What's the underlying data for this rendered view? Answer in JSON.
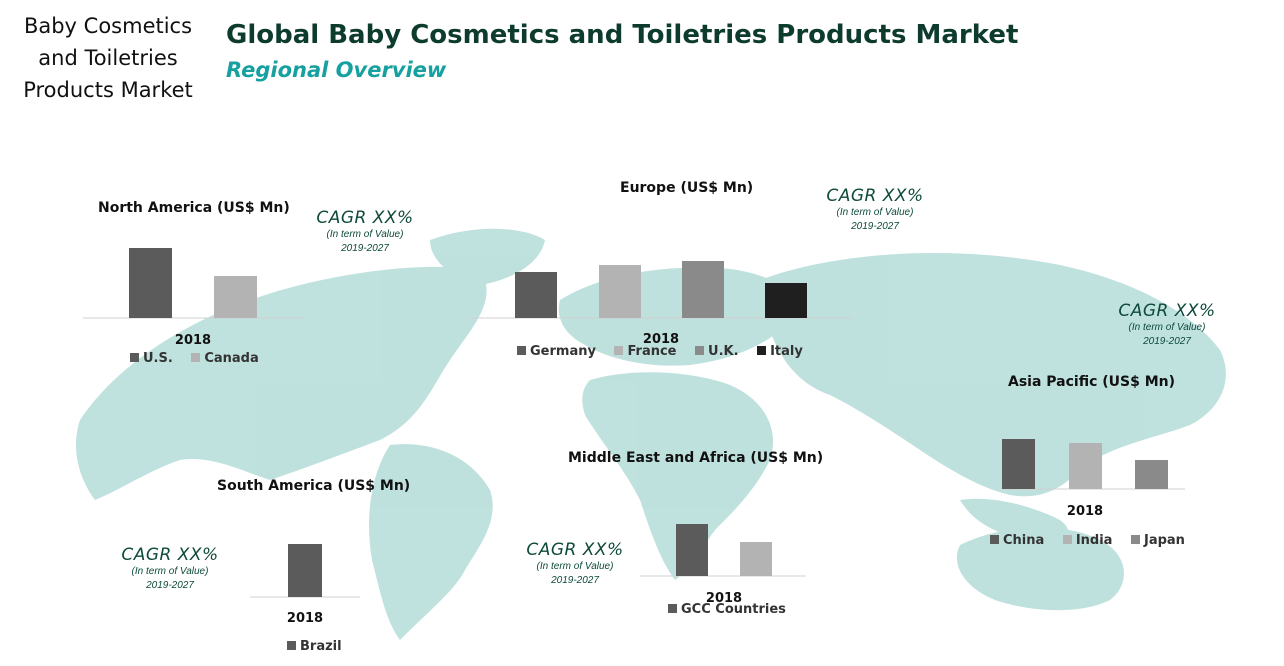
{
  "header": {
    "side_title_lines": [
      "Baby Cosmetics",
      "and Toiletries",
      "Products Market"
    ],
    "main_title": "Global Baby Cosmetics and Toiletries Products Market",
    "subtitle": "Regional Overview"
  },
  "cagr": {
    "big": "CAGR XX%",
    "line1": "(In term of Value)",
    "line2": "2019-2027"
  },
  "colors": {
    "dark": "#5b5b5b",
    "light": "#b3b3b3",
    "mid": "#8a8a8a",
    "black": "#1f1f1f",
    "map": "#a9d8d4"
  },
  "chart_data": [
    {
      "type": "bar",
      "title": "North America (US$ Mn)",
      "categories": [
        "2018"
      ],
      "series": [
        {
          "name": "U.S.",
          "values": [
            70
          ]
        },
        {
          "name": "Canada",
          "values": [
            42
          ]
        }
      ],
      "ylim": [
        0,
        75
      ],
      "grid": false,
      "legend": "bottom"
    },
    {
      "type": "bar",
      "title": "Europe (US$ Mn)",
      "categories": [
        "2018"
      ],
      "series": [
        {
          "name": "Germany",
          "values": [
            46
          ]
        },
        {
          "name": "France",
          "values": [
            53
          ]
        },
        {
          "name": "U.K.",
          "values": [
            57
          ]
        },
        {
          "name": "Italy",
          "values": [
            35
          ]
        }
      ],
      "ylim": [
        0,
        75
      ],
      "grid": false,
      "legend": "bottom"
    },
    {
      "type": "bar",
      "title": "Asia Pacific (US$ Mn)",
      "categories": [
        "2018"
      ],
      "series": [
        {
          "name": "China",
          "values": [
            50
          ]
        },
        {
          "name": "India",
          "values": [
            46
          ]
        },
        {
          "name": "Japan",
          "values": [
            29
          ]
        }
      ],
      "ylim": [
        0,
        75
      ],
      "grid": false,
      "legend": "bottom"
    },
    {
      "type": "bar",
      "title": "South America (US$ Mn)",
      "categories": [
        "2018"
      ],
      "series": [
        {
          "name": "Brazil",
          "values": [
            53
          ]
        }
      ],
      "ylim": [
        0,
        75
      ],
      "grid": false,
      "legend": "bottom"
    },
    {
      "type": "bar",
      "title": "Middle East and Africa (US$ Mn)",
      "categories": [
        "2018"
      ],
      "series": [
        {
          "name": "GCC Countries",
          "values": [
            52
          ]
        },
        {
          "name": "",
          "values": [
            34
          ]
        }
      ],
      "ylim": [
        0,
        75
      ],
      "grid": false,
      "legend": "bottom"
    }
  ]
}
